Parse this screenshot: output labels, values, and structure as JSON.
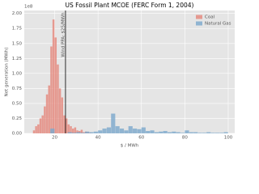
{
  "chart_data": {
    "type": "histogram",
    "title": "US Fossil Plant MCOE (FERC Form 1, 2004)",
    "xlabel": "$ / MWh",
    "ylabel": "Net generation (MWh)",
    "y_offset_label": "1e8",
    "xlim": [
      6,
      103
    ],
    "xticks": [
      20,
      40,
      60,
      80,
      100
    ],
    "ylim": [
      0,
      2.05
    ],
    "yticks": [
      {
        "value": 0,
        "label": "0.00"
      },
      0.25,
      {
        "value": 0.5,
        "label": "0.50"
      },
      0.75,
      {
        "value": 1,
        "label": "1.00"
      },
      1.25,
      {
        "value": 1.5,
        "label": "1.50"
      },
      1.75,
      {
        "value": 2,
        "label": "2.00"
      }
    ],
    "grid": true,
    "legend": "upper right",
    "annotation": {
      "text": "Wind PPA: $25/MWh",
      "x": 25
    },
    "series": [
      {
        "name": "Coal",
        "color": "#e5867a",
        "bins": [
          10,
          11,
          12,
          13,
          14,
          15,
          16,
          17,
          18,
          19,
          20,
          21,
          22,
          23,
          24,
          25,
          26,
          27,
          28,
          29,
          30,
          31,
          32,
          33,
          34,
          35,
          36,
          37
        ],
        "values": [
          0.05,
          0.12,
          0.15,
          0.25,
          0.3,
          0.45,
          0.65,
          0.8,
          1.45,
          1.9,
          1.6,
          1.15,
          0.75,
          0.6,
          0.3,
          0.25,
          0.15,
          0.12,
          0.08,
          0.1,
          0.05,
          0.04,
          0.06,
          0.02,
          0.03,
          0.02,
          0.01
        ]
      },
      {
        "name": "Natural Gas",
        "color": "#7ba7cc",
        "bins": [
          18,
          20,
          22,
          24,
          26,
          28,
          30,
          32,
          34,
          36,
          38,
          40,
          42,
          44,
          46,
          48,
          50,
          52,
          54,
          56,
          58,
          60,
          62,
          64,
          66,
          68,
          70,
          72,
          74,
          76,
          78,
          80,
          82,
          84,
          86,
          88,
          90,
          92,
          94,
          96,
          98,
          100
        ],
        "values": [
          0.08,
          0,
          0,
          0,
          0.02,
          0.01,
          0.02,
          0.01,
          0.03,
          0.02,
          0.03,
          0.05,
          0.08,
          0.1,
          0.33,
          0.12,
          0.08,
          0.05,
          0.12,
          0.08,
          0.07,
          0.1,
          0.04,
          0.05,
          0.02,
          0.03,
          0.04,
          0.02,
          0.03,
          0.02,
          0.01,
          0.05,
          0.02,
          0.02,
          0.01,
          0.01,
          0.02,
          0.01,
          0.01,
          0.01,
          0.02
        ]
      }
    ]
  }
}
